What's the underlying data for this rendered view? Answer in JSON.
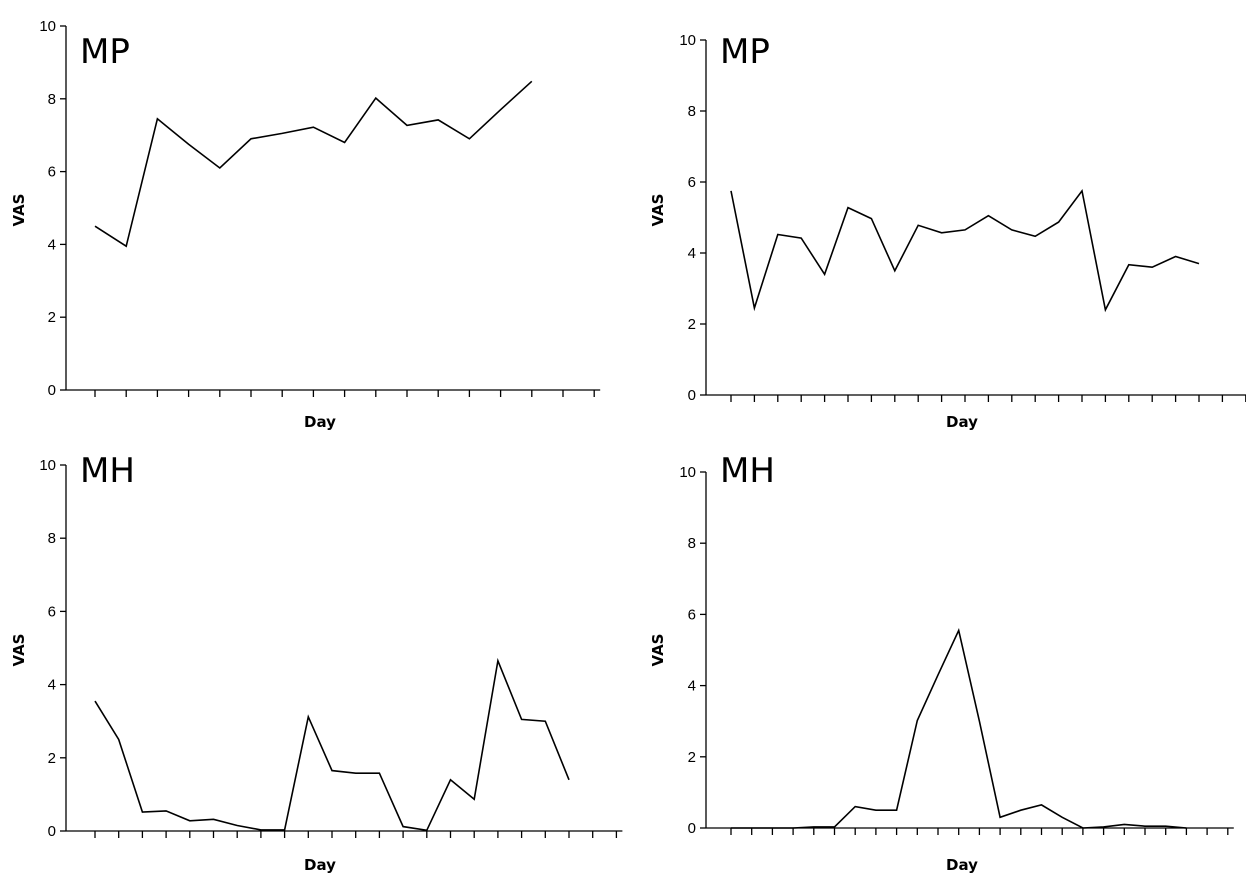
{
  "chart_data": [
    {
      "type": "line",
      "title": "MP",
      "xlabel": "Day",
      "ylabel": "VAS",
      "ylim": [
        0,
        10
      ],
      "yticks": [
        0,
        2,
        4,
        6,
        8,
        10
      ],
      "x_tick_count": 17,
      "x": [
        1,
        2,
        3,
        4,
        5,
        6,
        7,
        8,
        9,
        10,
        11,
        12,
        13,
        14,
        15
      ],
      "values": [
        4.5,
        3.95,
        7.45,
        6.75,
        6.1,
        6.9,
        7.05,
        7.22,
        6.8,
        8.02,
        7.27,
        7.42,
        6.9,
        7.7,
        8.48
      ]
    },
    {
      "type": "line",
      "title": "MP",
      "xlabel": "Day",
      "ylabel": "VAS",
      "ylim": [
        0,
        10
      ],
      "yticks": [
        0,
        2,
        4,
        6,
        8,
        10
      ],
      "x_tick_count": 23,
      "x": [
        1,
        2,
        3,
        4,
        5,
        6,
        7,
        8,
        9,
        10,
        11,
        12,
        13,
        14,
        15,
        16,
        17,
        18,
        19,
        20,
        21
      ],
      "values": [
        5.75,
        2.45,
        4.52,
        4.42,
        3.4,
        5.28,
        4.97,
        3.5,
        4.78,
        4.57,
        4.65,
        5.05,
        4.65,
        4.47,
        4.87,
        5.75,
        2.4,
        3.67,
        3.6,
        3.9,
        3.7
      ]
    },
    {
      "type": "line",
      "title": "MH",
      "xlabel": "Day",
      "ylabel": "VAS",
      "ylim": [
        0,
        10
      ],
      "yticks": [
        0,
        2,
        4,
        6,
        8,
        10
      ],
      "x_tick_count": 23,
      "x": [
        1,
        2,
        3,
        4,
        5,
        6,
        7,
        8,
        9,
        10,
        11,
        12,
        13,
        14,
        15,
        16,
        17,
        18,
        19,
        20,
        21
      ],
      "values": [
        3.55,
        2.5,
        0.52,
        0.55,
        0.28,
        0.32,
        0.15,
        0.03,
        0.03,
        3.12,
        1.65,
        1.58,
        1.58,
        0.12,
        0.02,
        1.4,
        0.87,
        4.65,
        3.05,
        3.0,
        1.4
      ]
    },
    {
      "type": "line",
      "title": "MH",
      "xlabel": "Day",
      "ylabel": "VAS",
      "ylim": [
        0,
        10
      ],
      "yticks": [
        0,
        2,
        4,
        6,
        8,
        10
      ],
      "x_tick_count": 25,
      "x": [
        1,
        2,
        3,
        4,
        5,
        6,
        7,
        8,
        9,
        10,
        11,
        12,
        13,
        14,
        15,
        16,
        17,
        18,
        19,
        20,
        21,
        22,
        23
      ],
      "values": [
        0.0,
        0.0,
        0.0,
        0.0,
        0.03,
        0.03,
        0.6,
        0.5,
        0.5,
        3.02,
        4.3,
        5.55,
        3.0,
        0.3,
        0.5,
        0.65,
        0.3,
        0.0,
        0.03,
        0.1,
        0.05,
        0.05,
        0.0
      ]
    }
  ]
}
